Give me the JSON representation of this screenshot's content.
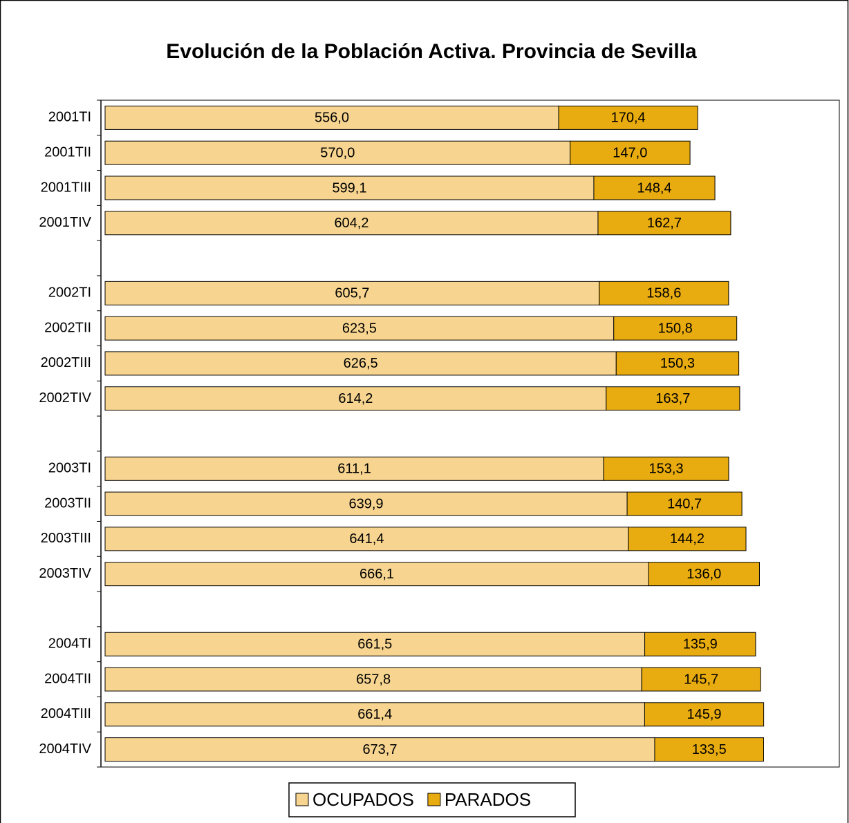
{
  "chart_data": {
    "type": "bar",
    "orientation": "horizontal",
    "stacked": true,
    "title": "Evolución de la Población Activa. Provincia de Sevilla",
    "categories": [
      "2001TI",
      "2001TII",
      "2001TIII",
      "2001TIV",
      null,
      "2002TI",
      "2002TII",
      "2002TIII",
      "2002TIV",
      null,
      "2003TI",
      "2003TII",
      "2003TIII",
      "2003TIV",
      null,
      "2004TI",
      "2004TII",
      "2004TIII",
      "2004TIV"
    ],
    "series": [
      {
        "name": "OCUPADOS",
        "color": "#f7d591",
        "values": [
          556.0,
          570.0,
          599.1,
          604.2,
          null,
          605.7,
          623.5,
          626.5,
          614.2,
          null,
          611.1,
          639.9,
          641.4,
          666.1,
          null,
          661.5,
          657.8,
          661.4,
          673.7
        ],
        "value_labels": [
          "556,0",
          "570,0",
          "599,1",
          "604,2",
          null,
          "605,7",
          "623,5",
          "626,5",
          "614,2",
          null,
          "611,1",
          "639,9",
          "641,4",
          "666,1",
          null,
          "661,5",
          "657,8",
          "661,4",
          "673,7"
        ]
      },
      {
        "name": "PARADOS",
        "color": "#e8ab10",
        "values": [
          170.4,
          147.0,
          148.4,
          162.7,
          null,
          158.6,
          150.8,
          150.3,
          163.7,
          null,
          153.3,
          140.7,
          144.2,
          136.0,
          null,
          135.9,
          145.7,
          145.9,
          133.5
        ],
        "value_labels": [
          "170,4",
          "147,0",
          "148,4",
          "162,7",
          null,
          "158,6",
          "150,8",
          "150,3",
          "163,7",
          null,
          "153,3",
          "140,7",
          "144,2",
          "136,0",
          null,
          "135,9",
          "145,7",
          "145,9",
          "133,5"
        ]
      }
    ],
    "legend": "bottom"
  }
}
